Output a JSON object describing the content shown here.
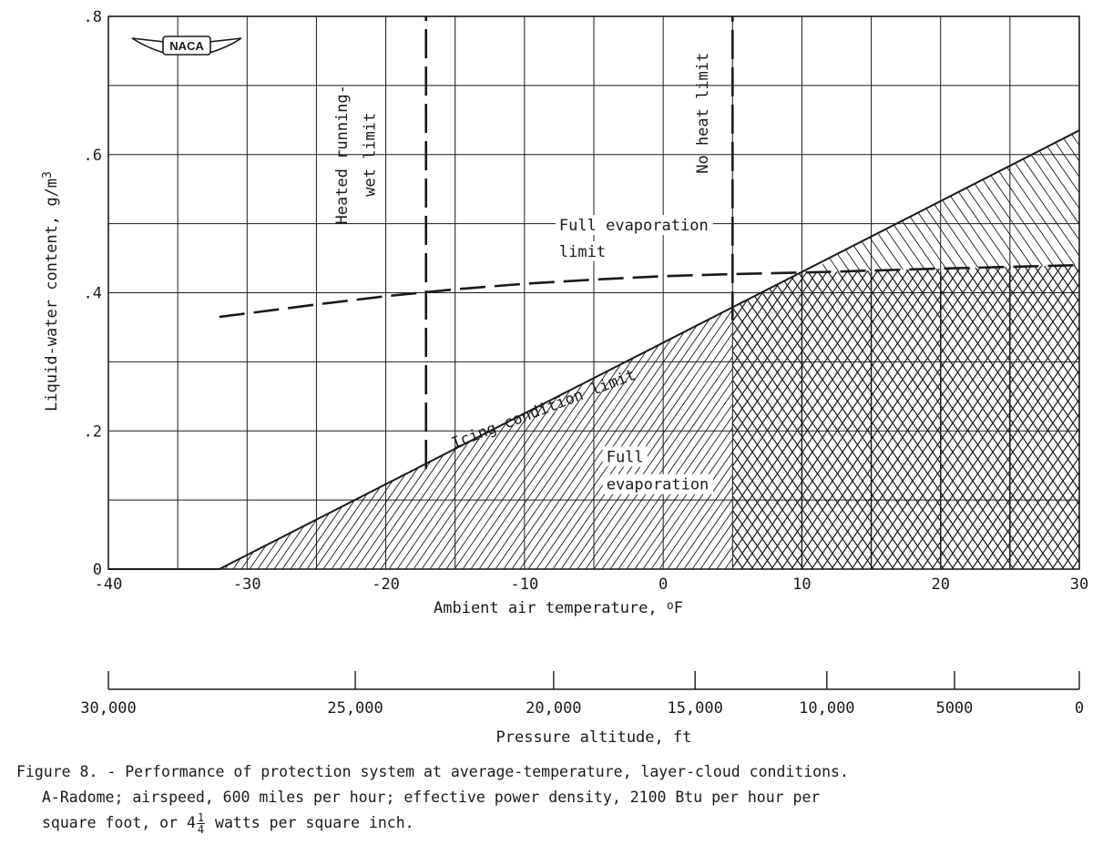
{
  "chart_data": {
    "type": "line",
    "title": "",
    "xlabel_main": "Ambient air temperature,",
    "xlabel_unit_o": "o",
    "xlabel_unit_F": "F",
    "ylabel_main": "Liquid-water content, g/m",
    "ylabel_sup": "3",
    "xlim": [
      -40,
      30
    ],
    "ylim": [
      0,
      0.8
    ],
    "x_ticks": [
      -40,
      -30,
      -20,
      -10,
      0,
      10,
      20,
      30
    ],
    "x_tick_labels": [
      "-40",
      "-30",
      "-20",
      "-10",
      "0",
      "10",
      "20",
      "30"
    ],
    "y_ticks": [
      0,
      0.2,
      0.4,
      0.6,
      0.8
    ],
    "y_tick_labels": [
      "0",
      ".2",
      ".4",
      ".6",
      ".8"
    ],
    "grid": true,
    "series": [
      {
        "name": "Icing condition limit",
        "style": "solid",
        "x": [
          -40,
          -32,
          30
        ],
        "y": [
          0,
          0,
          0.635
        ]
      },
      {
        "name": "Full evaporation limit",
        "style": "dashed",
        "x": [
          -32,
          -25,
          -20,
          -15,
          -10,
          -5,
          0,
          5,
          11.5,
          20,
          30
        ],
        "y": [
          0.365,
          0.383,
          0.395,
          0.405,
          0.413,
          0.419,
          0.424,
          0.427,
          0.43,
          0.435,
          0.44
        ]
      },
      {
        "name": "Heated running-wet limit",
        "style": "dashed",
        "x": [
          -17.1,
          -17.1
        ],
        "y": [
          0.145,
          0.8
        ]
      },
      {
        "name": "No heat limit",
        "style": "dashed",
        "x": [
          5,
          5
        ],
        "y": [
          0.36,
          0.8
        ]
      }
    ],
    "regions": [
      {
        "name": "Full evaporation",
        "hatch": "single",
        "x_range": [
          -32,
          5
        ]
      },
      {
        "name": "No heat",
        "hatch": "cross",
        "x_range": [
          5,
          30
        ]
      }
    ],
    "annotations": [
      {
        "text": "Heated running-",
        "x": -22.8,
        "y": 0.6
      },
      {
        "text": "wet limit",
        "x": -20.8,
        "y": 0.6
      },
      {
        "text": "Full evaporation",
        "x": -7.5,
        "y": 0.49
      },
      {
        "text": "limit",
        "x": -7.5,
        "y": 0.452
      },
      {
        "text": "No heat limit",
        "x": 3.2,
        "y": 0.66
      },
      {
        "text": "Icing condition limit",
        "x": -8.5,
        "y": 0.225
      },
      {
        "text": "Full",
        "x": -4.1,
        "y": 0.155
      },
      {
        "text": "evaporation",
        "x": -4.1,
        "y": 0.115
      }
    ],
    "altitude_axis": {
      "label": "Pressure altitude, ft",
      "ticks": [
        {
          "label": "30,000",
          "temp": -40
        },
        {
          "label": "25,000",
          "temp": -22.2
        },
        {
          "label": "20,000",
          "temp": -7.9
        },
        {
          "label": "15,000",
          "temp": 2.3
        },
        {
          "label": "10,000",
          "temp": 11.8
        },
        {
          "label": "5000",
          "temp": 21
        },
        {
          "label": "0",
          "temp": 30
        }
      ]
    },
    "logo": "NACA"
  },
  "caption": {
    "line1": "Figure 8. - Performance of protection system at average-temperature, layer-cloud conditions.",
    "line2": "A-Radome; airspeed, 600 miles per hour; effective power density, 2100 Btu per hour per",
    "line3_pre": "square foot, or 4",
    "line3_num": "1",
    "line3_den": "4",
    "line3_post": " watts per square inch."
  }
}
